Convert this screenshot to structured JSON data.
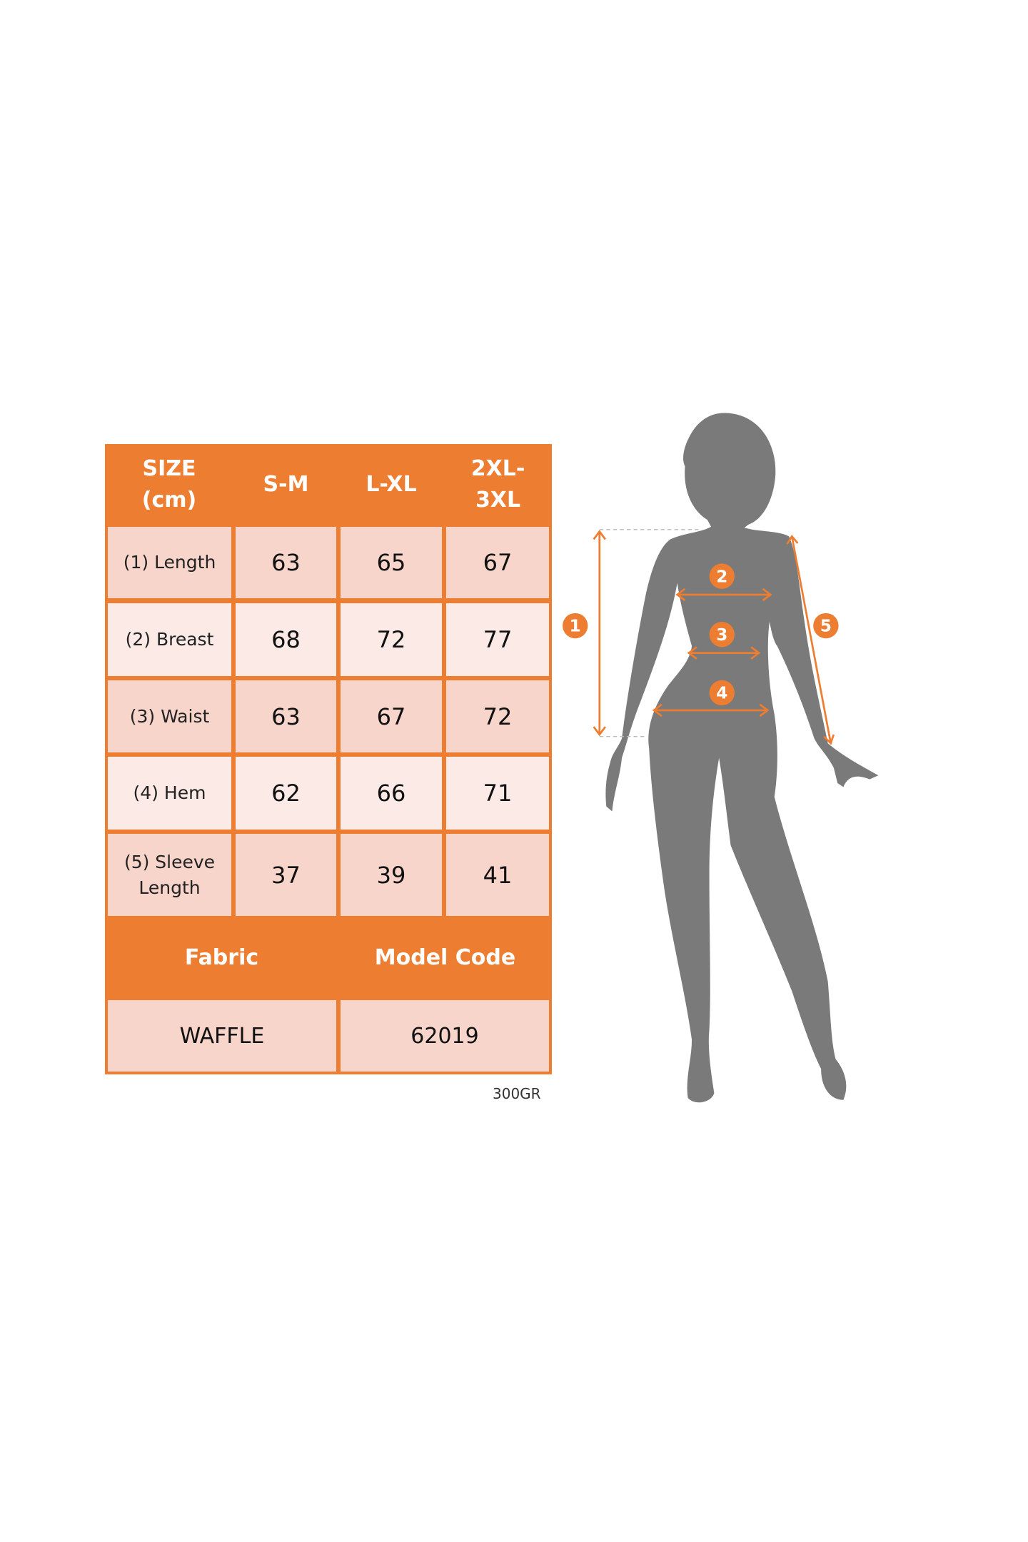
{
  "table": {
    "header": [
      "SIZE (cm)",
      "S-M",
      "L-XL",
      "2XL-3XL"
    ],
    "header_lines": [
      [
        "SIZE",
        "(cm)"
      ],
      [
        "S-M"
      ],
      [
        "L-XL"
      ],
      [
        "2XL-",
        "3XL"
      ]
    ],
    "rows": [
      {
        "label": "(1) Length",
        "values": [
          "63",
          "65",
          "67"
        ]
      },
      {
        "label": "(2) Breast",
        "values": [
          "68",
          "72",
          "77"
        ]
      },
      {
        "label": "(3) Waist",
        "values": [
          "63",
          "67",
          "72"
        ]
      },
      {
        "label": "(4) Hem",
        "values": [
          "62",
          "66",
          "71"
        ]
      },
      {
        "label": "(5) Sleeve Length",
        "label_lines": [
          "(5) Sleeve",
          "Length"
        ],
        "values": [
          "37",
          "39",
          "41"
        ]
      }
    ],
    "footer_headers": [
      "Fabric",
      "Model Code"
    ],
    "footer_values": [
      "WAFFLE",
      "62019"
    ]
  },
  "note": "300GR",
  "figure": {
    "markers": [
      "1",
      "2",
      "3",
      "4",
      "5"
    ]
  },
  "colors": {
    "accent": "#ED7D31",
    "cell_dark": "#F8D5CB",
    "cell_light": "#FBEAE5",
    "silhouette": "#7A7A7A"
  }
}
